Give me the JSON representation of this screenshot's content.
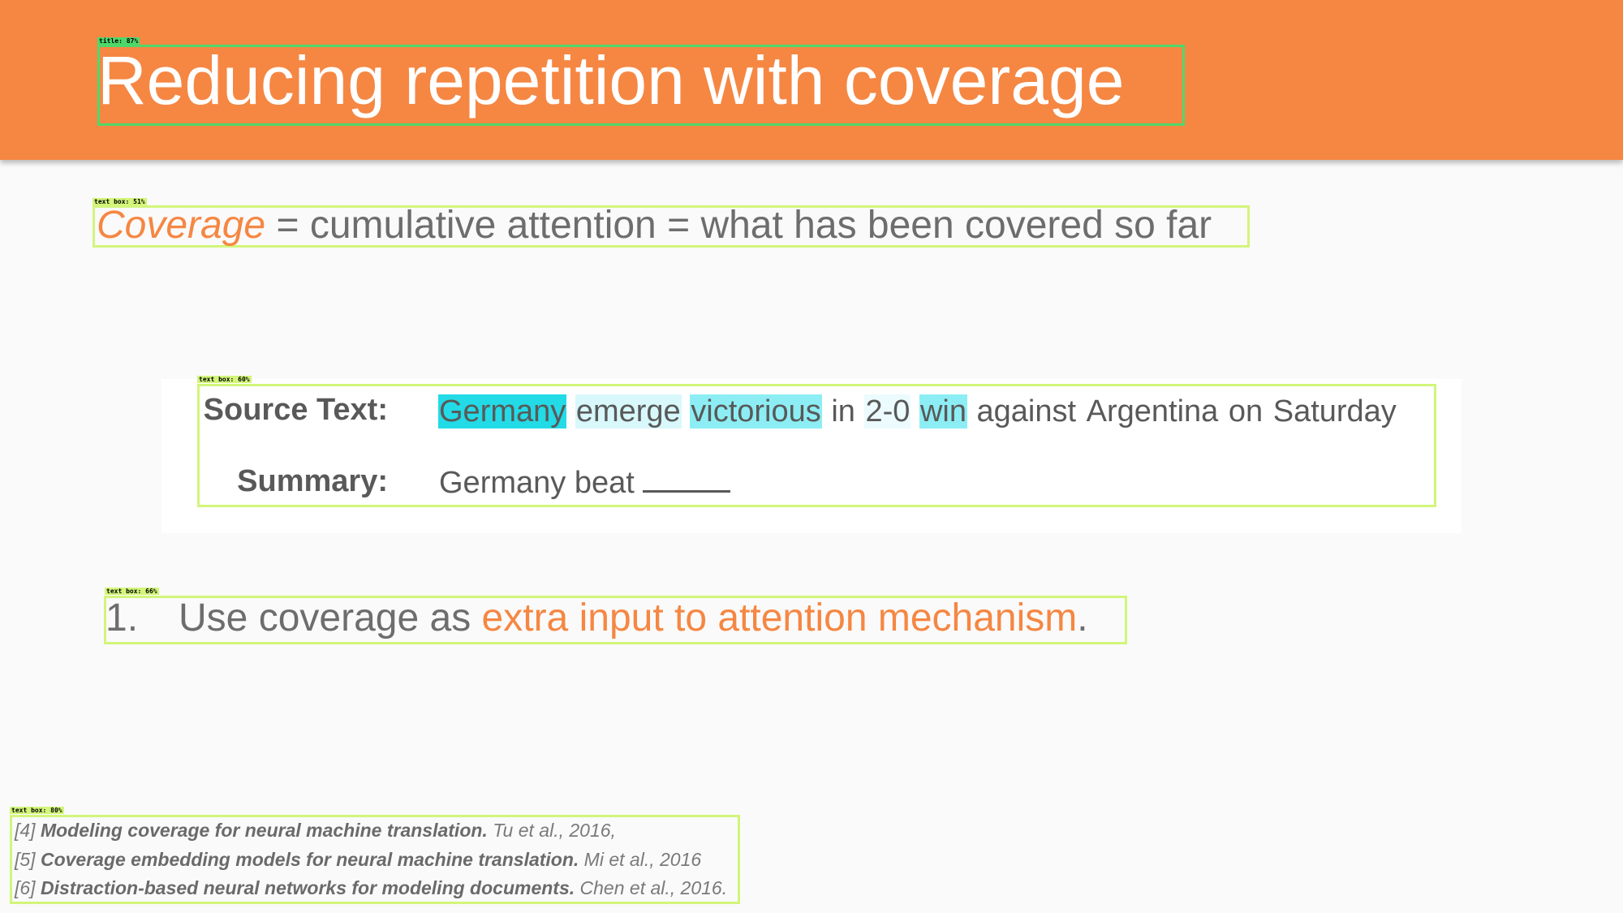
{
  "title": "Reducing repetition with coverage",
  "detections": {
    "title": "title: 87%",
    "coverage": "text box: 51%",
    "example": "text box: 60%",
    "list": "text box: 66%",
    "refs": "text box: 80%"
  },
  "coverage_line": {
    "term": "Coverage",
    "rest": " = cumulative attention = what has been covered so far"
  },
  "example": {
    "source_label": "Source Text:",
    "summary_label": "Summary:",
    "source_tokens": [
      {
        "text": "Germany",
        "attention": "strong"
      },
      {
        "text": "emerge",
        "attention": "light"
      },
      {
        "text": "victorious",
        "attention": "mid"
      },
      {
        "text": "in",
        "attention": "none"
      },
      {
        "text": "2-0",
        "attention": "faint"
      },
      {
        "text": "win",
        "attention": "mid"
      },
      {
        "text": "against",
        "attention": "none"
      },
      {
        "text": "Argentina",
        "attention": "none"
      },
      {
        "text": "on",
        "attention": "none"
      },
      {
        "text": "Saturday",
        "attention": "none"
      }
    ],
    "summary_text": "Germany beat"
  },
  "list": {
    "number": "1.",
    "prefix": "Use coverage as ",
    "highlight": "extra input to attention mechanism",
    "suffix": "."
  },
  "references": [
    {
      "num": "[4] ",
      "title": "Modeling coverage for neural machine translation.",
      "authors": " Tu et al., 2016,"
    },
    {
      "num": "[5] ",
      "title": "Coverage embedding models for neural machine translation.",
      "authors": " Mi et al., 2016"
    },
    {
      "num": "[6] ",
      "title": "Distraction-based neural networks for modeling documents.",
      "authors": " Chen et al., 2016."
    }
  ],
  "colors": {
    "header": "#f58743",
    "accent": "#f58743",
    "body_text": "#6d6d6d",
    "attention_strong": "#22dbe6",
    "attention_mid": "#8ceef4",
    "attention_light": "#d8f8fb"
  }
}
